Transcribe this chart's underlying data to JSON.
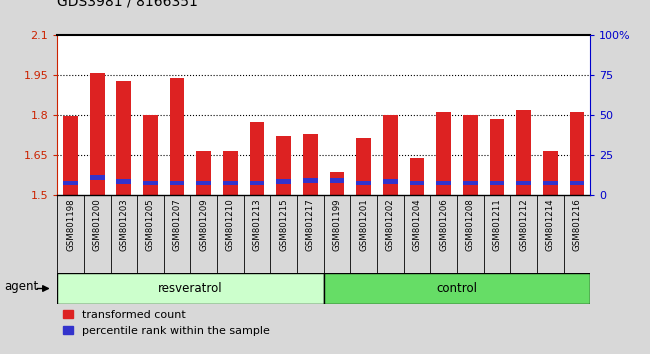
{
  "title": "GDS3981 / 8166351",
  "samples": [
    "GSM801198",
    "GSM801200",
    "GSM801203",
    "GSM801205",
    "GSM801207",
    "GSM801209",
    "GSM801210",
    "GSM801213",
    "GSM801215",
    "GSM801217",
    "GSM801199",
    "GSM801201",
    "GSM801202",
    "GSM801204",
    "GSM801206",
    "GSM801208",
    "GSM801211",
    "GSM801212",
    "GSM801214",
    "GSM801216"
  ],
  "red_values": [
    1.795,
    1.96,
    1.93,
    1.8,
    1.94,
    1.665,
    1.665,
    1.775,
    1.72,
    1.73,
    1.585,
    1.715,
    1.8,
    1.64,
    1.81,
    1.8,
    1.785,
    1.82,
    1.665,
    1.81
  ],
  "blue_heights": [
    0.018,
    0.018,
    0.018,
    0.018,
    0.018,
    0.018,
    0.018,
    0.018,
    0.018,
    0.018,
    0.018,
    0.018,
    0.018,
    0.018,
    0.018,
    0.018,
    0.018,
    0.018,
    0.018,
    0.018
  ],
  "blue_bottoms": [
    1.535,
    1.555,
    1.54,
    1.535,
    1.535,
    1.535,
    1.535,
    1.535,
    1.54,
    1.545,
    1.545,
    1.535,
    1.54,
    1.535,
    1.535,
    1.535,
    1.535,
    1.535,
    1.535,
    1.535
  ],
  "ylim": [
    1.5,
    2.1
  ],
  "yticks_left": [
    1.5,
    1.65,
    1.8,
    1.95,
    2.1
  ],
  "yticks_right": [
    0,
    25,
    50,
    75,
    100
  ],
  "ytick_labels_right": [
    "0",
    "25",
    "50",
    "75",
    "100%"
  ],
  "resveratrol_count": 10,
  "control_count": 10,
  "group_label_resveratrol": "resveratrol",
  "group_label_control": "control",
  "agent_label": "agent",
  "legend_red": "transformed count",
  "legend_blue": "percentile rank within the sample",
  "bar_color_red": "#dd2222",
  "bar_color_blue": "#3333cc",
  "background_color": "#d8d8d8",
  "group_bg_color_resveratrol": "#ccffcc",
  "group_bg_color_control": "#66dd66",
  "plot_bg_color": "#ffffff",
  "left_tick_color": "#cc2200",
  "right_tick_color": "#0000cc",
  "xtick_bg_color": "#c8c8c8",
  "bar_width": 0.55,
  "grid_color": "#333333",
  "spine_color": "#000000"
}
